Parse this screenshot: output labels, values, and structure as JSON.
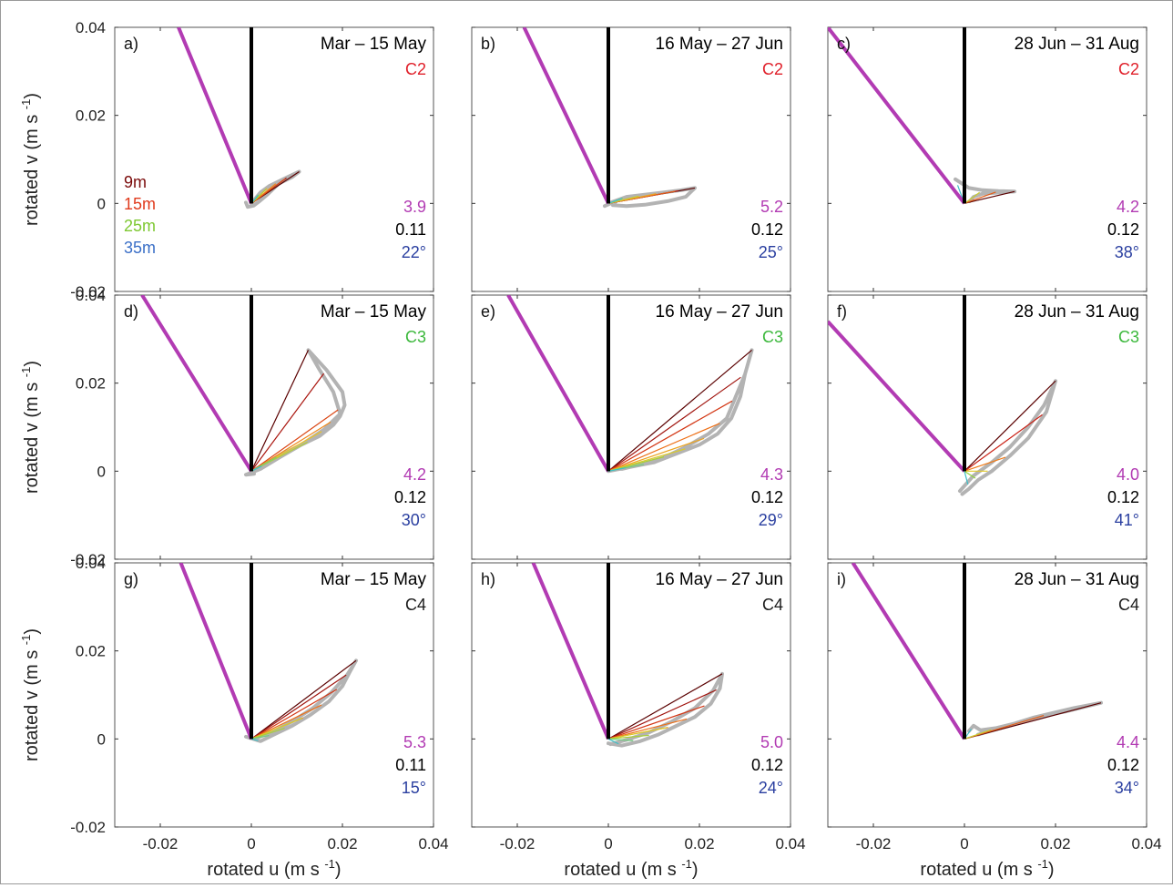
{
  "figure": {
    "xlabel": "rotated u (m s",
    "xlabel_sup": "-1",
    "xlabel_end": ")",
    "ylabel": "rotated v (m s",
    "ylabel_sup": "-1",
    "ylabel_end": ")",
    "xticks": [
      "-0.02",
      "0",
      "0.02",
      "0.04"
    ],
    "yticks": [
      "0.04",
      "0.02",
      "0",
      "-0.02"
    ],
    "legend": [
      {
        "label": "9m",
        "color": "#7a0a0a"
      },
      {
        "label": "15m",
        "color": "#e03a1c"
      },
      {
        "label": "25m",
        "color": "#7ec832"
      },
      {
        "label": "35m",
        "color": "#3a6fc7"
      }
    ],
    "colors": {
      "wind": "#b23bb3",
      "north": "#000000",
      "hodograph": "#b3b3b3",
      "ratio": "#b23bb3",
      "coef": "#000000",
      "angle": "#2a3fa0",
      "C2": "#e0202a",
      "C3": "#3cb83c",
      "C4": "#1a1a1a"
    }
  },
  "chart_data": {
    "type": "line",
    "xlim": [
      -0.03,
      0.04
    ],
    "ylim": [
      -0.02,
      0.04
    ],
    "grid": false,
    "panels": [
      {
        "label": "a)",
        "period": "Mar – 15 May",
        "mooring": "C2",
        "ratio": "3.9",
        "coef": "0.11",
        "angle": "22°",
        "wind_end": [
          -0.016,
          0.04
        ],
        "hodograph": [
          [
            0.0,
            0.0
          ],
          [
            0.002,
            0.0025
          ],
          [
            0.004,
            0.004
          ],
          [
            0.006,
            0.005
          ],
          [
            0.008,
            0.006
          ],
          [
            0.0105,
            0.0072
          ],
          [
            0.009,
            0.006
          ],
          [
            0.006,
            0.0045
          ],
          [
            0.0035,
            0.002
          ],
          [
            0.0018,
            0.0005
          ],
          [
            0.0005,
            -0.0005
          ],
          [
            -0.0008,
            -0.0008
          ],
          [
            -0.0012,
            0.0002
          ]
        ],
        "ekman_n": 8
      },
      {
        "label": "b)",
        "period": "16 May – 27 Jun",
        "mooring": "C2",
        "ratio": "5.2",
        "coef": "0.12",
        "angle": "25°",
        "wind_end": [
          -0.0185,
          0.04
        ],
        "hodograph": [
          [
            0.0,
            0.0
          ],
          [
            0.004,
            0.0015
          ],
          [
            0.008,
            0.002
          ],
          [
            0.012,
            0.0025
          ],
          [
            0.016,
            0.003
          ],
          [
            0.019,
            0.0035
          ],
          [
            0.017,
            0.0015
          ],
          [
            0.013,
            0.0005
          ],
          [
            0.008,
            -0.0003
          ],
          [
            0.004,
            -0.0006
          ],
          [
            0.001,
            -0.0004
          ],
          [
            0.0018,
            0.0006
          ],
          [
            -0.0008,
            -0.0006
          ]
        ],
        "ekman_n": 7
      },
      {
        "label": "c)",
        "period": "28 Jun – 31 Aug",
        "mooring": "C2",
        "ratio": "4.2",
        "coef": "0.12",
        "angle": "38°",
        "wind_end": [
          -0.03,
          0.04
        ],
        "hodograph": [
          [
            -0.002,
            0.0055
          ],
          [
            0.001,
            0.0035
          ],
          [
            0.004,
            0.003
          ],
          [
            0.0075,
            0.0028
          ],
          [
            0.011,
            0.0027
          ],
          [
            0.008,
            0.0025
          ],
          [
            0.004,
            0.0022
          ],
          [
            0.002,
            0.0015
          ],
          [
            0.0012,
            0.0005
          ]
        ],
        "ekman_n": 4
      },
      {
        "label": "d)",
        "period": "Mar – 15 May",
        "mooring": "C3",
        "ratio": "4.2",
        "coef": "0.12",
        "angle": "30°",
        "wind_end": [
          -0.024,
          0.04
        ],
        "hodograph": [
          [
            0.0,
            0.0
          ],
          [
            0.003,
            0.0015
          ],
          [
            0.007,
            0.004
          ],
          [
            0.011,
            0.006
          ],
          [
            0.015,
            0.008
          ],
          [
            0.018,
            0.0105
          ],
          [
            0.0195,
            0.0125
          ],
          [
            0.0205,
            0.015
          ],
          [
            0.02,
            0.018
          ],
          [
            0.0165,
            0.023
          ],
          [
            0.0125,
            0.0275
          ],
          [
            0.015,
            0.023
          ],
          [
            0.018,
            0.018
          ],
          [
            0.0195,
            0.013
          ],
          [
            0.016,
            0.0095
          ],
          [
            0.011,
            0.006
          ],
          [
            0.006,
            0.003
          ],
          [
            0.002,
            0.0005
          ],
          [
            -0.0012,
            -0.0008
          ],
          [
            0.0006,
            -0.0006
          ]
        ],
        "ekman_n": 8
      },
      {
        "label": "e)",
        "period": "16 May – 27 Jun",
        "mooring": "C3",
        "ratio": "4.3",
        "coef": "0.12",
        "angle": "29°",
        "wind_end": [
          -0.022,
          0.04
        ],
        "hodograph": [
          [
            0.0,
            0.0
          ],
          [
            0.005,
            0.001
          ],
          [
            0.01,
            0.002
          ],
          [
            0.015,
            0.004
          ],
          [
            0.02,
            0.006
          ],
          [
            0.024,
            0.0085
          ],
          [
            0.027,
            0.012
          ],
          [
            0.029,
            0.017
          ],
          [
            0.03,
            0.022
          ],
          [
            0.0315,
            0.0275
          ],
          [
            0.03,
            0.022
          ],
          [
            0.028,
            0.017
          ],
          [
            0.026,
            0.012
          ],
          [
            0.022,
            0.0085
          ],
          [
            0.017,
            0.0055
          ],
          [
            0.012,
            0.003
          ],
          [
            0.007,
            0.0015
          ],
          [
            0.003,
            0.0005
          ]
        ],
        "ekman_n": 9
      },
      {
        "label": "f)",
        "period": "28 Jun – 31 Aug",
        "mooring": "C3",
        "ratio": "4.0",
        "coef": "0.12",
        "angle": "41°",
        "wind_end": [
          -0.03,
          0.034
        ],
        "hodograph": [
          [
            -0.0005,
            -0.0052
          ],
          [
            0.001,
            -0.004
          ],
          [
            0.003,
            -0.002
          ],
          [
            0.006,
            0.0
          ],
          [
            0.01,
            0.0035
          ],
          [
            0.014,
            0.0075
          ],
          [
            0.018,
            0.0135
          ],
          [
            0.02,
            0.0205
          ],
          [
            0.0175,
            0.015
          ],
          [
            0.014,
            0.01
          ],
          [
            0.01,
            0.0055
          ],
          [
            0.006,
            0.002
          ],
          [
            0.002,
            -0.001
          ],
          [
            -0.001,
            -0.0045
          ]
        ],
        "ekman_n": 6
      },
      {
        "label": "g)",
        "period": "Mar – 15 May",
        "mooring": "C4",
        "ratio": "5.3",
        "coef": "0.11",
        "angle": "15°",
        "wind_end": [
          -0.0155,
          0.04
        ],
        "hodograph": [
          [
            -0.0012,
            0.0005
          ],
          [
            0.002,
            -0.0005
          ],
          [
            0.005,
            0.001
          ],
          [
            0.009,
            0.003
          ],
          [
            0.013,
            0.0055
          ],
          [
            0.017,
            0.0085
          ],
          [
            0.02,
            0.012
          ],
          [
            0.0215,
            0.015
          ],
          [
            0.023,
            0.0178
          ],
          [
            0.021,
            0.0145
          ],
          [
            0.0175,
            0.0105
          ],
          [
            0.0135,
            0.007
          ],
          [
            0.009,
            0.004
          ],
          [
            0.0045,
            0.0015
          ],
          [
            0.0005,
            0.0
          ]
        ],
        "ekman_n": 9
      },
      {
        "label": "h)",
        "period": "16 May – 27 Jun",
        "mooring": "C4",
        "ratio": "5.0",
        "coef": "0.12",
        "angle": "24°",
        "wind_end": [
          -0.0165,
          0.04
        ],
        "hodograph": [
          [
            0.0,
            -0.001
          ],
          [
            0.003,
            -0.0015
          ],
          [
            0.007,
            -0.0005
          ],
          [
            0.011,
            0.001
          ],
          [
            0.015,
            0.003
          ],
          [
            0.019,
            0.005
          ],
          [
            0.0225,
            0.008
          ],
          [
            0.0245,
            0.0115
          ],
          [
            0.025,
            0.0148
          ],
          [
            0.023,
            0.011
          ],
          [
            0.019,
            0.007
          ],
          [
            0.014,
            0.004
          ],
          [
            0.009,
            0.0015
          ],
          [
            0.004,
            -0.0002
          ],
          [
            0.0005,
            -0.0012
          ]
        ],
        "ekman_n": 9
      },
      {
        "label": "i)",
        "period": "28 Jun – 31 Aug",
        "mooring": "C4",
        "ratio": "4.4",
        "coef": "0.12",
        "angle": "34°",
        "wind_end": [
          -0.0245,
          0.04
        ],
        "hodograph": [
          [
            0.001,
            0.0018
          ],
          [
            0.002,
            0.003
          ],
          [
            0.0035,
            0.002
          ],
          [
            0.007,
            0.0025
          ],
          [
            0.011,
            0.0035
          ],
          [
            0.015,
            0.0048
          ],
          [
            0.019,
            0.0058
          ],
          [
            0.024,
            0.007
          ],
          [
            0.03,
            0.0082
          ],
          [
            0.022,
            0.0062
          ],
          [
            0.017,
            0.0052
          ],
          [
            0.012,
            0.0038
          ],
          [
            0.007,
            0.0022
          ],
          [
            0.003,
            0.001
          ]
        ],
        "ekman_n": 4
      }
    ]
  }
}
